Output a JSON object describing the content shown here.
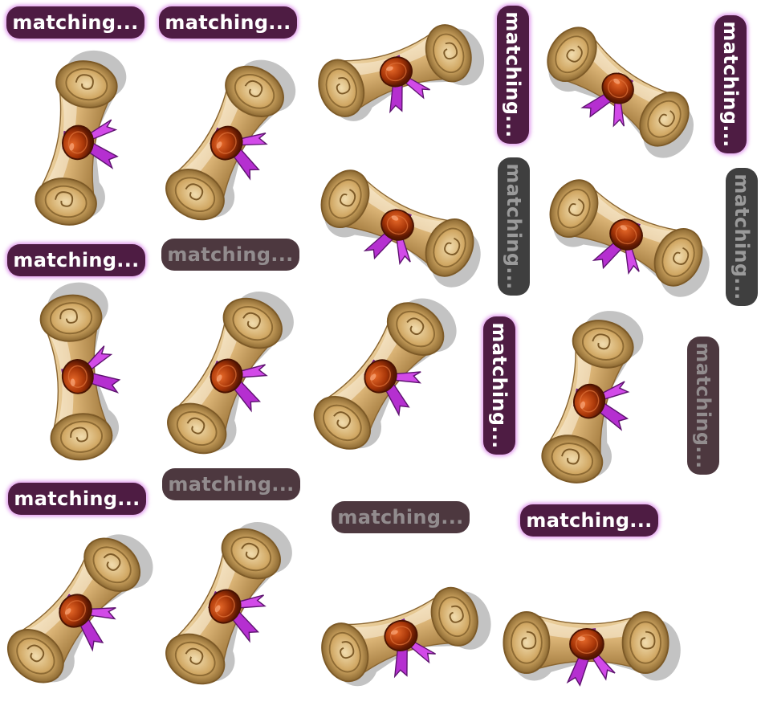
{
  "sprite_sheet": {
    "badge_text": "matching...",
    "colors": {
      "badge_active": "#4e1c43",
      "badge_glow": "#d678e6",
      "badge_inactive": "#3f3f3f",
      "badge_inactive_text": "#9a9a9a",
      "parchment": "#d9b274",
      "ribbon": "#c63ae0",
      "seal": "#a83608"
    },
    "icon": "diploma-scroll-icon",
    "badges": [
      {
        "text": "matching...",
        "state": "active"
      },
      {
        "text": "matching...",
        "state": "active"
      },
      {
        "text": "matching...",
        "state": "active"
      },
      {
        "text": "matching...",
        "state": "inactive"
      },
      {
        "text": "matching...",
        "state": "active"
      },
      {
        "text": "matching...",
        "state": "inactive"
      },
      {
        "text": "matching...",
        "state": "active"
      },
      {
        "text": "matching...",
        "state": "active"
      },
      {
        "text": "matching...",
        "state": "inactive"
      },
      {
        "text": "matching...",
        "state": "inactive"
      },
      {
        "text": "matching...",
        "state": "active"
      },
      {
        "text": "matching...",
        "state": "active"
      },
      {
        "text": "matching...",
        "state": "inactive"
      }
    ]
  }
}
